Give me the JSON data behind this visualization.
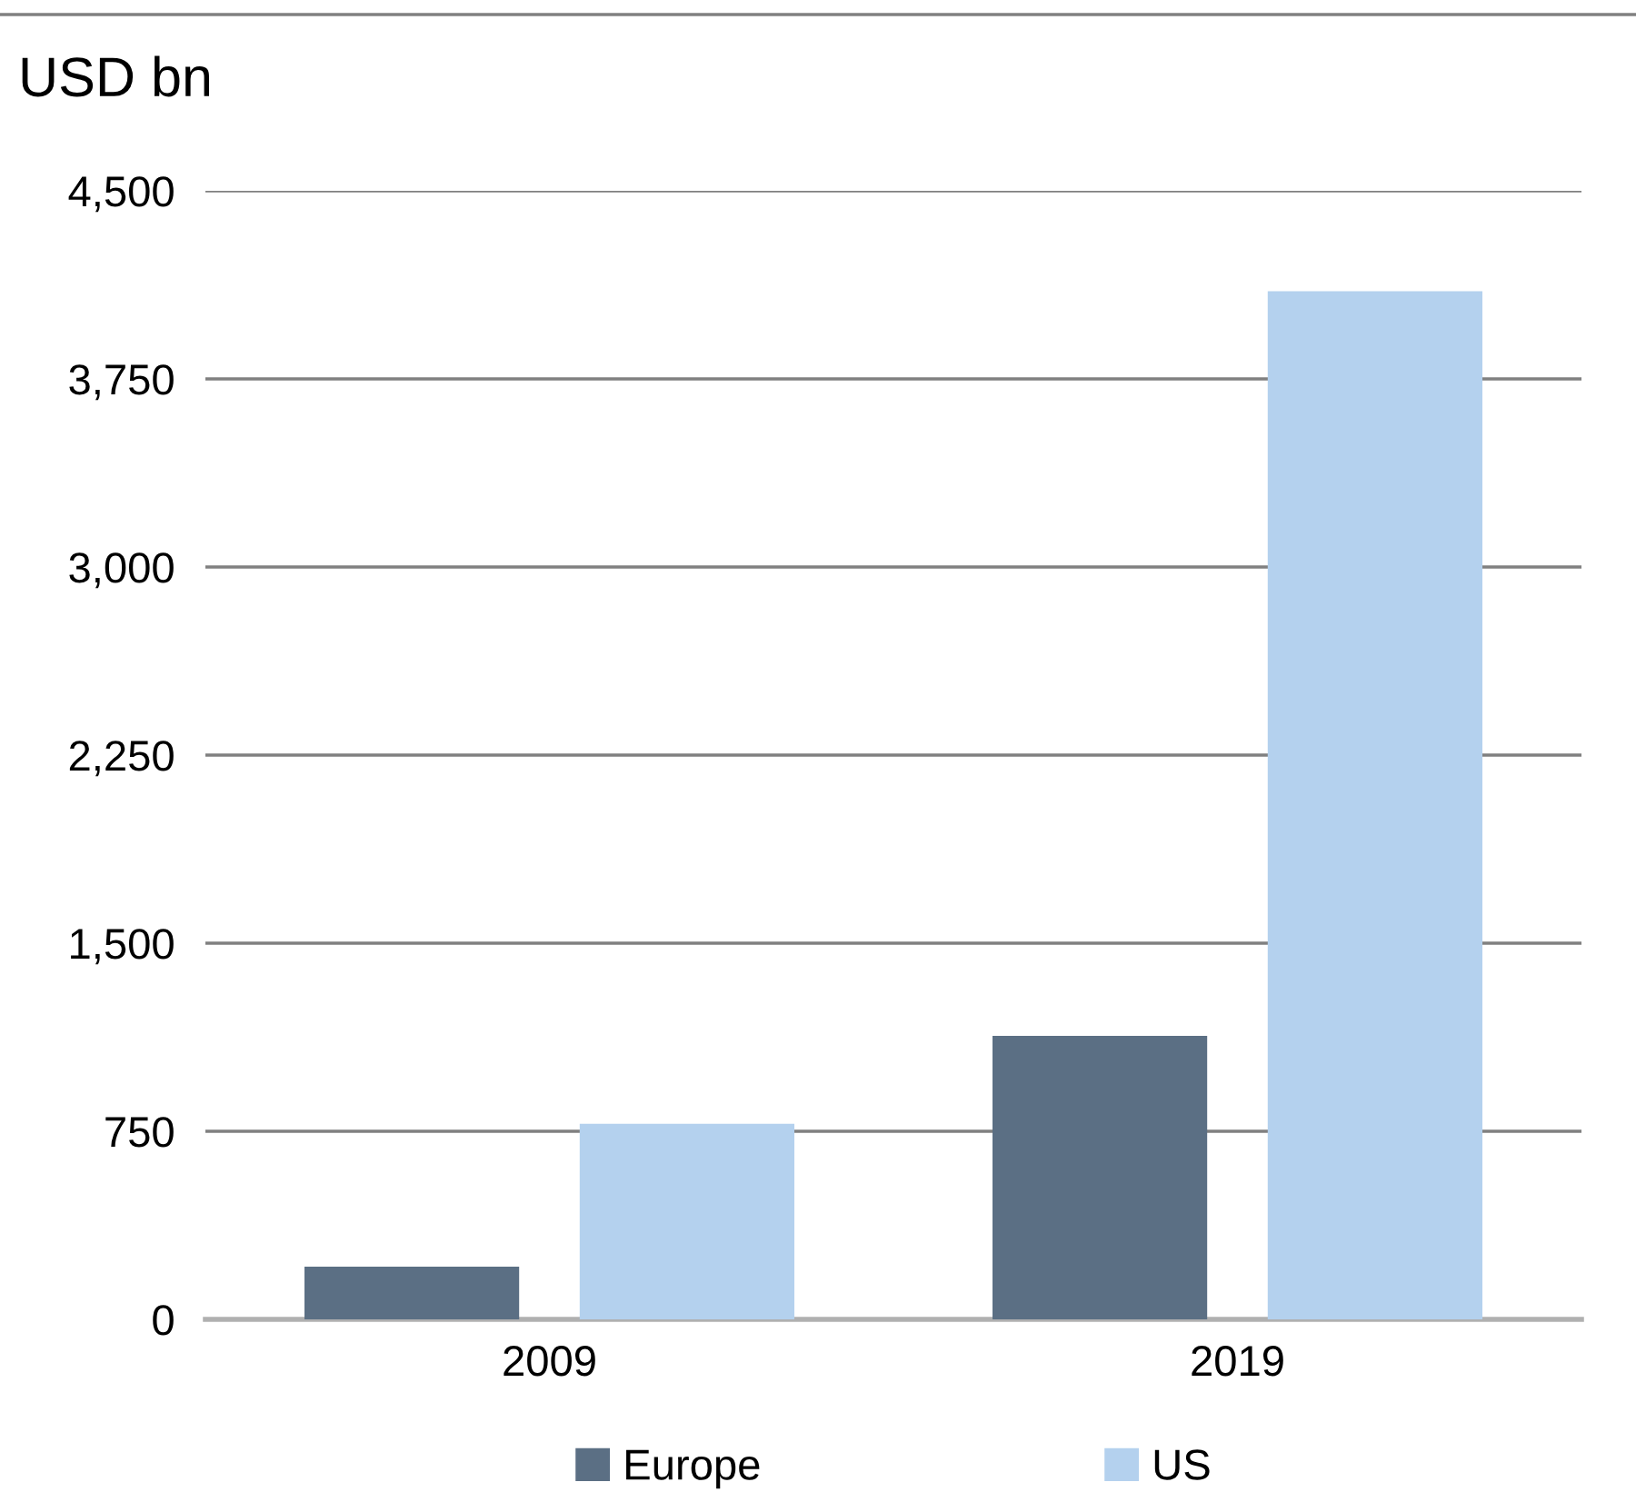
{
  "chart_data": {
    "type": "bar",
    "title": "USD bn",
    "categories": [
      "2009",
      "2019"
    ],
    "series": [
      {
        "name": "Europe",
        "color": "#5b6f84",
        "values": [
          210,
          1130
        ]
      },
      {
        "name": "US",
        "color": "#b4d1ee",
        "values": [
          780,
          4100
        ]
      }
    ],
    "ylim": [
      0,
      4500
    ],
    "yticks": [
      {
        "value": 0,
        "label": "0"
      },
      {
        "value": 750,
        "label": "750"
      },
      {
        "value": 1500,
        "label": "1,500"
      },
      {
        "value": 2250,
        "label": "2,250"
      },
      {
        "value": 3000,
        "label": "3,000"
      },
      {
        "value": 3750,
        "label": "3,750"
      },
      {
        "value": 4500,
        "label": "4,500"
      }
    ],
    "grid": "y",
    "legend": "bottom"
  }
}
